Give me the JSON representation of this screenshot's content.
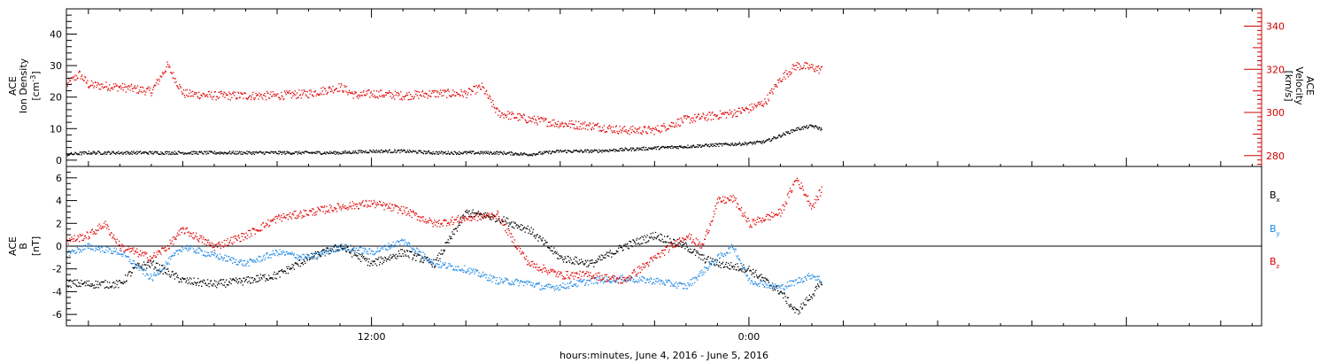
{
  "colors": {
    "black": "#000000",
    "red": "#e00000",
    "blue": "#1e88e5",
    "axis_red": "#d00000"
  },
  "x_axis": {
    "tick_labels": [
      "12:00",
      "0:00"
    ],
    "label": "hours:minutes, June  4, 2016 - June  5, 2016"
  },
  "chart_data": [
    {
      "type": "scatter",
      "panel": "top",
      "y_label": [
        "ACE",
        "Ion Density",
        "[cm^-3]"
      ],
      "y_tick_labels": [
        "0",
        "10",
        "20",
        "30",
        "40"
      ],
      "ylim": [
        -2,
        48
      ],
      "y2_label": [
        "ACE",
        "Velocity",
        "[km/s]"
      ],
      "y2_tick_labels": [
        "280",
        "300",
        "320",
        "340"
      ],
      "y2lim": [
        275,
        348
      ],
      "x_unit": "hours from 00:00 June 4, 2016",
      "xlim": [
        2.3,
        40.3
      ],
      "series": [
        {
          "color": "black",
          "axis": "left",
          "x": [
            2.3,
            3,
            4,
            5,
            6,
            7,
            8,
            9,
            10,
            11,
            12,
            13,
            14,
            15,
            16,
            17,
            18,
            19,
            20,
            21,
            22,
            23,
            24,
            24.5,
            25,
            25.5,
            26,
            26.3
          ],
          "y": [
            2,
            2.5,
            2.5,
            2.5,
            2.5,
            2.5,
            2.5,
            2.5,
            2.5,
            2.5,
            3,
            3,
            2.5,
            2.5,
            2.5,
            2,
            3,
            3,
            3.5,
            4,
            4.5,
            5,
            5.5,
            6,
            8,
            10,
            11,
            10
          ]
        },
        {
          "color": "red",
          "axis": "right",
          "x": [
            2.3,
            2.7,
            3,
            4,
            5,
            5.5,
            6,
            7,
            8,
            9,
            10,
            11,
            11.5,
            12,
            13,
            14,
            15,
            15.5,
            16,
            17,
            18,
            19,
            20,
            21,
            22,
            22.5,
            23,
            23.5,
            24,
            24.5,
            25,
            25.5,
            26,
            26.3
          ],
          "y": [
            313,
            318,
            313,
            312,
            310,
            322,
            309,
            308,
            308,
            308,
            309,
            312,
            308,
            309,
            308,
            309,
            309,
            312,
            300,
            297,
            295,
            294,
            292,
            292,
            297,
            298,
            299,
            300,
            302,
            305,
            316,
            322,
            321,
            320
          ]
        }
      ]
    },
    {
      "type": "scatter",
      "panel": "bottom",
      "y_label": [
        "ACE",
        "B",
        "[nT]"
      ],
      "y_tick_labels": [
        "-6",
        "-4",
        "-2",
        "0",
        "2",
        "4",
        "6"
      ],
      "ylim": [
        -7,
        7
      ],
      "x_unit": "hours from 00:00 June 4, 2016",
      "xlim": [
        2.3,
        40.3
      ],
      "legend": [
        "B_x",
        "B_y",
        "B_z"
      ],
      "series": [
        {
          "name": "B_x",
          "color": "black",
          "x": [
            2.3,
            3,
            4,
            4.5,
            5,
            6,
            7,
            8,
            9,
            10,
            11,
            12,
            13,
            14,
            15,
            16,
            17,
            18,
            19,
            20,
            21,
            22,
            22.5,
            23,
            24,
            25,
            25.5,
            26,
            26.3
          ],
          "y": [
            -3.2,
            -3.3,
            -3.3,
            -1.8,
            -1.5,
            -3,
            -3.3,
            -3,
            -2.5,
            -1,
            0,
            -1.5,
            -0.5,
            -1.5,
            3,
            2.5,
            1.5,
            -1,
            -1.5,
            0,
            1,
            0,
            -1,
            -1.5,
            -2,
            -4,
            -5.8,
            -4.2,
            -3.2
          ]
        },
        {
          "name": "B_y",
          "color": "blue",
          "x": [
            2.3,
            3,
            4,
            5,
            6,
            7,
            8,
            9,
            10,
            11,
            12,
            13,
            13.5,
            14,
            15,
            16,
            17,
            17.5,
            18,
            19,
            20,
            21,
            22,
            23,
            23.5,
            24,
            25,
            26,
            26.3
          ],
          "y": [
            -0.6,
            0,
            -0.5,
            -2.8,
            0,
            -0.8,
            -1.5,
            -0.5,
            -1,
            0,
            -0.5,
            0.5,
            -0.5,
            -1.5,
            -2,
            -3,
            -3.2,
            -3.6,
            -3.5,
            -3,
            -2.8,
            -3,
            -3.5,
            -1,
            0,
            -3,
            -3.6,
            -2.5,
            -3
          ]
        },
        {
          "name": "B_z",
          "color": "red",
          "x": [
            2.3,
            3,
            3.5,
            4,
            5,
            5.5,
            6,
            7,
            8,
            9,
            10,
            11,
            12,
            13,
            14,
            15,
            16,
            16.5,
            17,
            18,
            19,
            20,
            21,
            22,
            22.5,
            23,
            23.5,
            24,
            25,
            25.5,
            26,
            26.3
          ],
          "y": [
            0.5,
            1,
            2,
            0,
            -1,
            0,
            1.5,
            0,
            1,
            2.5,
            3,
            3.5,
            3.8,
            3.2,
            2,
            2.5,
            2.8,
            0.5,
            -1.5,
            -2.5,
            -2.5,
            -3,
            -1,
            1,
            0,
            4,
            4.2,
            2,
            3,
            6,
            3.5,
            5
          ]
        }
      ]
    }
  ]
}
